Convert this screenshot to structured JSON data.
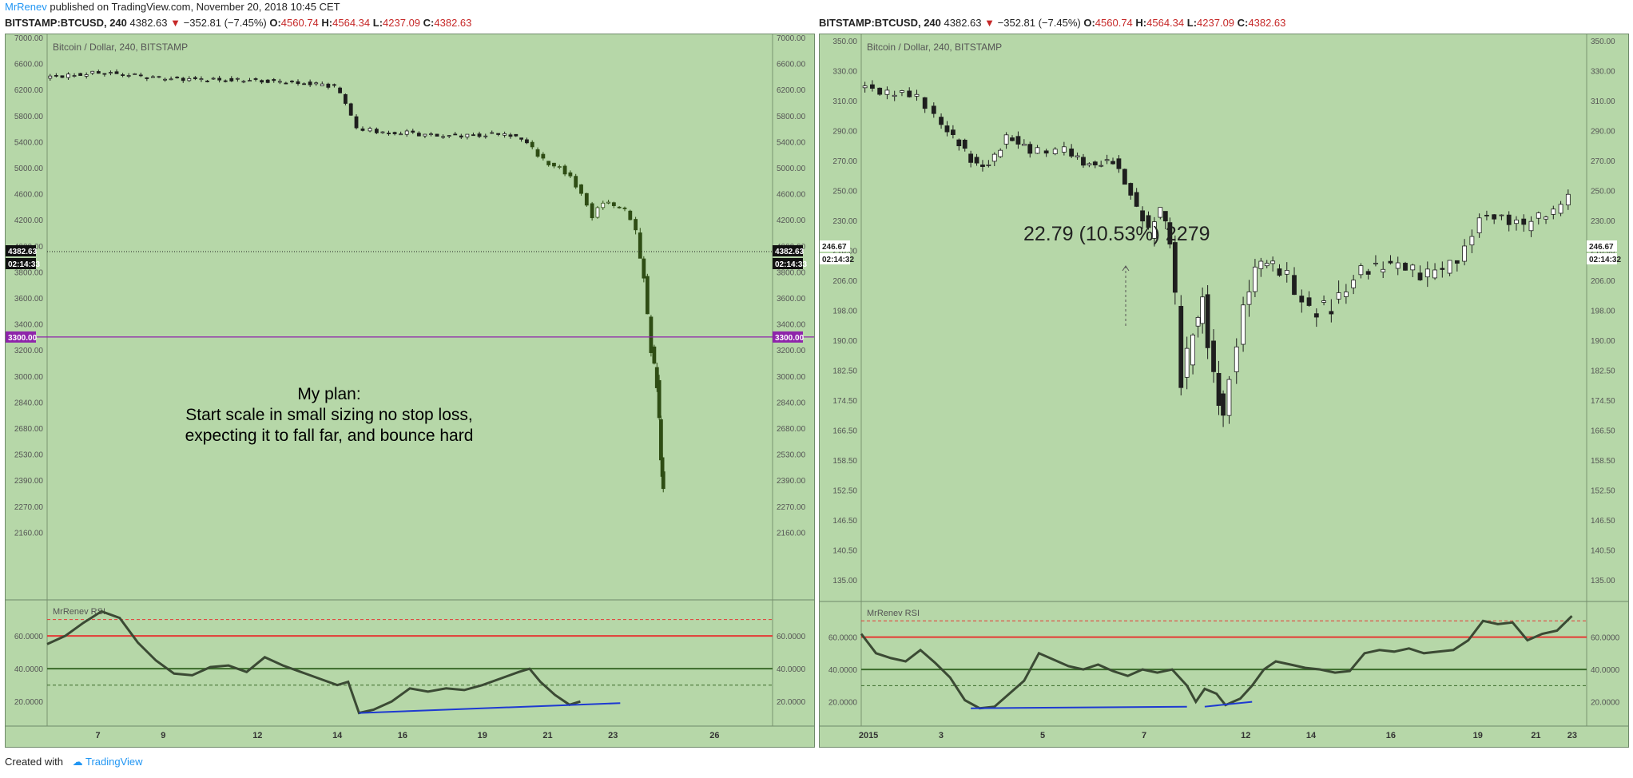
{
  "header": {
    "author": "MrRenev",
    "published_text": " published on TradingView.com, November 20, 2018 10:45 CET"
  },
  "left_header": {
    "symbol": "BITSTAMP:BTCUSD, 240",
    "price": "4382.63",
    "change_arrow": "▼",
    "change": "−352.81 (−7.45%)",
    "o_label": "O:",
    "o_val": "4560.74",
    "h_label": "H:",
    "h_val": "4564.34",
    "l_label": "L:",
    "l_val": "4237.09",
    "c_label": "C:",
    "c_val": "4382.63"
  },
  "right_header": {
    "symbol": "BITSTAMP:BTCUSD, 240",
    "price": "4382.63",
    "change_arrow": "▼",
    "change": "−352.81 (−7.45%)",
    "o_label": "O:",
    "o_val": "4560.74",
    "h_label": "H:",
    "h_val": "4564.34",
    "l_label": "L:",
    "l_val": "4237.09",
    "c_label": "C:",
    "c_val": "4382.63"
  },
  "colors": {
    "background": "#b6d7a8",
    "candle_dark": "#1e1e1e",
    "candle_green": "#2e4d14",
    "rsi_line": "#3b4a34",
    "rsi_upper": "#e53935",
    "rsi_mid": "#3a6b2a",
    "divergence": "#1e3ad1",
    "level_purple": "#8e24aa"
  },
  "chart_data": [
    {
      "type": "candlestick",
      "title": "Bitcoin / Dollar, 240, BITSTAMP",
      "y_ticks": [
        "7000.00",
        "6600.00",
        "6200.00",
        "5800.00",
        "5400.00",
        "5000.00",
        "4600.00",
        "4200.00",
        "4000.00",
        "3800.00",
        "3600.00",
        "3400.00",
        "3200.00",
        "3000.00",
        "2840.00",
        "2680.00",
        "2530.00",
        "2390.00",
        "2270.00",
        "2160.00"
      ],
      "x_ticks": [
        "7",
        "9",
        "12",
        "14",
        "16",
        "19",
        "21",
        "23",
        "26"
      ],
      "price_tag": "4382.63",
      "countdown": "02:14:33",
      "level_tag": "3300.00",
      "annotation": [
        "My plan:",
        "Start scale in small sizing no stop loss,",
        "expecting it to fall far, and bounce hard"
      ],
      "price_points": [
        [
          6,
          6390
        ],
        [
          7,
          6430
        ],
        [
          7.5,
          6470
        ],
        [
          8,
          6440
        ],
        [
          8.5,
          6420
        ],
        [
          9,
          6380
        ],
        [
          10,
          6360
        ],
        [
          11,
          6350
        ],
        [
          12,
          6340
        ],
        [
          13,
          6300
        ],
        [
          13.5,
          6280
        ],
        [
          14,
          6250
        ],
        [
          14.3,
          6000
        ],
        [
          14.6,
          5600
        ],
        [
          15,
          5580
        ],
        [
          15.5,
          5520
        ],
        [
          16,
          5540
        ],
        [
          16.5,
          5500
        ],
        [
          17,
          5490
        ],
        [
          18,
          5500
        ],
        [
          18.7,
          5530
        ],
        [
          19,
          5480
        ],
        [
          19.3,
          5400
        ],
        [
          19.6,
          5200
        ],
        [
          19.9,
          5050
        ],
        [
          20.2,
          5000
        ],
        [
          20.5,
          4850
        ],
        [
          20.8,
          4600
        ],
        [
          21.1,
          4250
        ],
        [
          21.4,
          4480
        ],
        [
          21.7,
          4420
        ],
        [
          22.0,
          4350
        ],
        [
          22.3,
          4100
        ],
        [
          22.5,
          3750
        ],
        [
          22.7,
          3200
        ],
        [
          22.85,
          2950
        ],
        [
          22.95,
          2500
        ],
        [
          23.0,
          2330
        ]
      ],
      "rsi": {
        "label": "MrRenev RSI",
        "upper": 60,
        "mid": 40,
        "dash_high": 70,
        "dash_low": 30,
        "y_ticks": [
          "60.0000",
          "40.0000",
          "20.0000"
        ],
        "points": [
          [
            6,
            55
          ],
          [
            6.5,
            60
          ],
          [
            7,
            68
          ],
          [
            7.5,
            75
          ],
          [
            8,
            71
          ],
          [
            8.5,
            56
          ],
          [
            9,
            45
          ],
          [
            9.5,
            37
          ],
          [
            10,
            36
          ],
          [
            10.5,
            41
          ],
          [
            11,
            42
          ],
          [
            11.5,
            38
          ],
          [
            12,
            47
          ],
          [
            12.5,
            42
          ],
          [
            13,
            38
          ],
          [
            13.5,
            34
          ],
          [
            14,
            30
          ],
          [
            14.3,
            32
          ],
          [
            14.6,
            13
          ],
          [
            15,
            15
          ],
          [
            15.5,
            20
          ],
          [
            16,
            28
          ],
          [
            16.5,
            26
          ],
          [
            17,
            28
          ],
          [
            17.5,
            27
          ],
          [
            18,
            30
          ],
          [
            18.5,
            34
          ],
          [
            19,
            38
          ],
          [
            19.3,
            40
          ],
          [
            19.6,
            32
          ],
          [
            20,
            24
          ],
          [
            20.4,
            18
          ],
          [
            20.7,
            20
          ]
        ],
        "divergence": [
          [
            14.6,
            13
          ],
          [
            21.8,
            19
          ]
        ]
      }
    },
    {
      "type": "candlestick",
      "title": "Bitcoin / Dollar, 240, BITSTAMP",
      "y_ticks": [
        "350.00",
        "330.00",
        "310.00",
        "290.00",
        "270.00",
        "250.00",
        "230.00",
        "218.00",
        "206.00",
        "198.00",
        "190.00",
        "182.50",
        "174.50",
        "166.50",
        "158.50",
        "152.50",
        "146.50",
        "140.50",
        "135.00"
      ],
      "x_ticks": [
        "2015",
        "3",
        "5",
        "7",
        "12",
        "14",
        "16",
        "19",
        "21",
        "23"
      ],
      "price_tag": "246.67",
      "countdown": "02:14:32",
      "annotation": "22.79 (10.53%) 2279",
      "price_points": [
        [
          1,
          320
        ],
        [
          2,
          315
        ],
        [
          3,
          314
        ],
        [
          3.6,
          300
        ],
        [
          4,
          290
        ],
        [
          4.4,
          282
        ],
        [
          4.8,
          270
        ],
        [
          5.2,
          265
        ],
        [
          5.6,
          272
        ],
        [
          6,
          286
        ],
        [
          6.4,
          282
        ],
        [
          6.8,
          277
        ],
        [
          7.4,
          276
        ],
        [
          8,
          278
        ],
        [
          8.4,
          271
        ],
        [
          8.8,
          267
        ],
        [
          9.2,
          268
        ],
        [
          9.6,
          270
        ],
        [
          10,
          255
        ],
        [
          10.4,
          238
        ],
        [
          10.8,
          225
        ],
        [
          11.2,
          238
        ],
        [
          11.5,
          222
        ],
        [
          11.9,
          180
        ],
        [
          12.3,
          192
        ],
        [
          12.6,
          200
        ],
        [
          13,
          180
        ],
        [
          13.3,
          170
        ],
        [
          13.8,
          190
        ],
        [
          14.2,
          205
        ],
        [
          14.6,
          214
        ],
        [
          15,
          212
        ],
        [
          15.5,
          208
        ],
        [
          16,
          200
        ],
        [
          16.5,
          198
        ],
        [
          17,
          199
        ],
        [
          17.5,
          203
        ],
        [
          18,
          210
        ],
        [
          18.5,
          211
        ],
        [
          19,
          213
        ],
        [
          19.5,
          212
        ],
        [
          20,
          208
        ],
        [
          20.5,
          210
        ],
        [
          21,
          212
        ],
        [
          21.5,
          218
        ],
        [
          22,
          232
        ],
        [
          22.5,
          233
        ],
        [
          23,
          230
        ],
        [
          23.5,
          228
        ],
        [
          24,
          233
        ],
        [
          24.5,
          236
        ],
        [
          25,
          248
        ]
      ],
      "rsi": {
        "label": "MrRenev RSI",
        "upper": 60,
        "mid": 40,
        "dash_high": 70,
        "dash_low": 30,
        "y_ticks": [
          "60.0000",
          "40.0000",
          "20.0000"
        ],
        "points": [
          [
            1,
            62
          ],
          [
            1.5,
            50
          ],
          [
            2,
            47
          ],
          [
            2.5,
            45
          ],
          [
            3,
            52
          ],
          [
            3.5,
            44
          ],
          [
            4,
            35
          ],
          [
            4.5,
            21
          ],
          [
            5,
            16
          ],
          [
            5.5,
            17
          ],
          [
            6,
            25
          ],
          [
            6.5,
            33
          ],
          [
            7,
            50
          ],
          [
            7.5,
            46
          ],
          [
            8,
            42
          ],
          [
            8.5,
            40
          ],
          [
            9,
            43
          ],
          [
            9.5,
            39
          ],
          [
            10,
            36
          ],
          [
            10.5,
            40
          ],
          [
            11,
            38
          ],
          [
            11.5,
            40
          ],
          [
            12,
            30
          ],
          [
            12.3,
            20
          ],
          [
            12.6,
            28
          ],
          [
            13,
            25
          ],
          [
            13.3,
            18
          ],
          [
            13.8,
            22
          ],
          [
            14.2,
            30
          ],
          [
            14.6,
            40
          ],
          [
            15,
            45
          ],
          [
            15.5,
            43
          ],
          [
            16,
            41
          ],
          [
            16.5,
            40
          ],
          [
            17,
            38
          ],
          [
            17.5,
            39
          ],
          [
            18,
            50
          ],
          [
            18.5,
            52
          ],
          [
            19,
            51
          ],
          [
            19.5,
            53
          ],
          [
            20,
            50
          ],
          [
            20.5,
            51
          ],
          [
            21,
            52
          ],
          [
            21.5,
            58
          ],
          [
            22,
            70
          ],
          [
            22.5,
            68
          ],
          [
            23,
            69
          ],
          [
            23.5,
            58
          ],
          [
            24,
            62
          ],
          [
            24.5,
            64
          ],
          [
            25,
            73
          ]
        ],
        "divergence": [
          [
            4.7,
            16
          ],
          [
            12,
            17
          ]
        ],
        "divergence2": [
          [
            12.6,
            17
          ],
          [
            14.2,
            20
          ]
        ]
      }
    }
  ],
  "footer": {
    "created_with": "Created with",
    "brand": "TradingView"
  }
}
